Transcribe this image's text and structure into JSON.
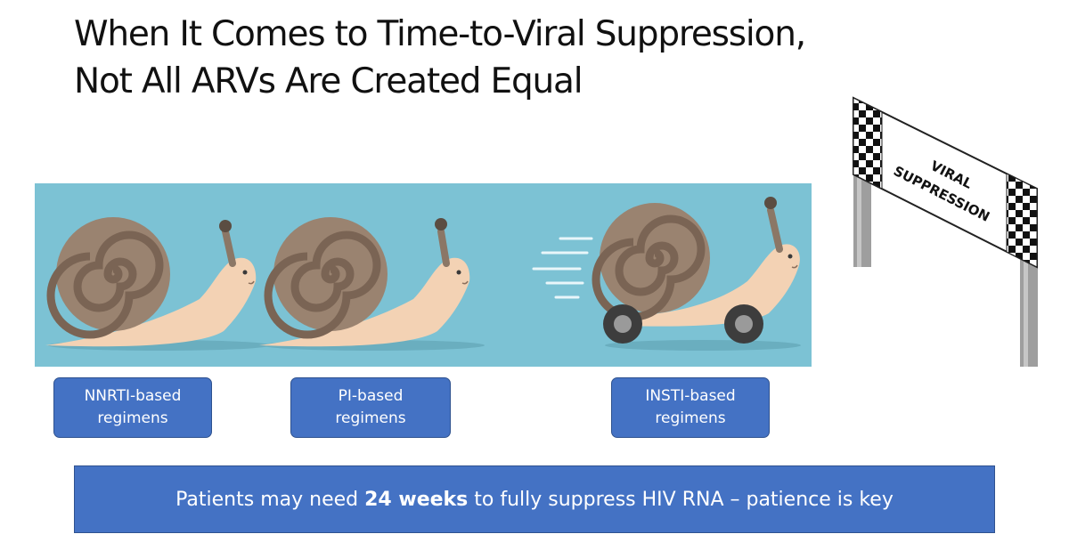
{
  "title": {
    "line1": "When It Comes to Time-to-Viral Suppression,",
    "line2": "Not All ARVs Are Created Equal"
  },
  "finish_sign": {
    "line1": "VIRAL",
    "line2": "SUPPRESSION"
  },
  "regimens": [
    {
      "line1": "NNRTI-based",
      "line2": "regimens"
    },
    {
      "line1": "PI-based",
      "line2": "regimens"
    },
    {
      "line1": "INSTI-based",
      "line2": "regimens"
    }
  ],
  "banner": {
    "before": "Patients may need ",
    "emphasis": "24 weeks",
    "after": " to fully suppress HIV RNA – patience is key"
  },
  "colors": {
    "scene_background": "#7cc2d4",
    "box_fill": "#4472c4",
    "shell": "#9a8370",
    "snail_body": "#f3d2b4"
  }
}
